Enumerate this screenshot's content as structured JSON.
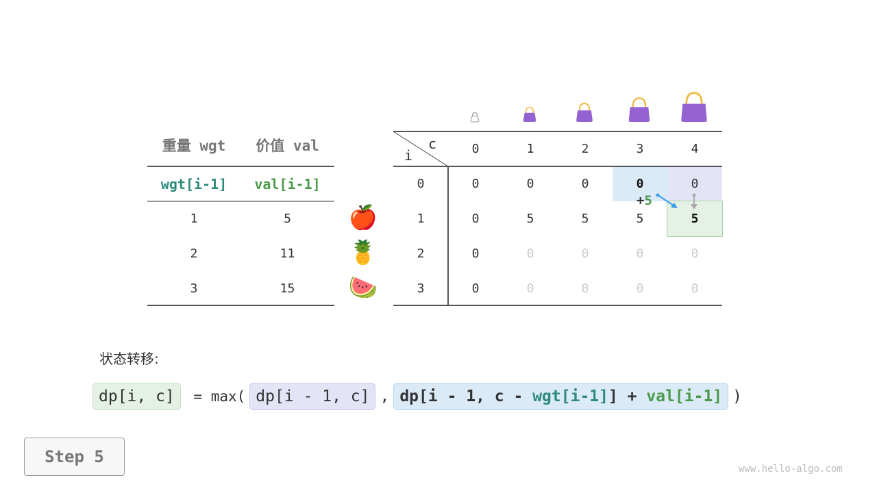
{
  "left_table": {
    "headers": [
      "重量 wgt",
      "价值 val"
    ],
    "subheaders": [
      "wgt[i-1]",
      "val[i-1]"
    ],
    "rows": [
      [
        "1",
        "5"
      ],
      [
        "2",
        "11"
      ],
      [
        "3",
        "15"
      ]
    ]
  },
  "items": [
    {
      "icon": "apple-icon",
      "glyph": "🍎"
    },
    {
      "icon": "pineapple-icon",
      "glyph": "🍍"
    },
    {
      "icon": "watermelon-icon",
      "glyph": "🍉"
    }
  ],
  "dp_table": {
    "row_label": "i",
    "col_label": "c",
    "columns": [
      "0",
      "1",
      "2",
      "3",
      "4"
    ],
    "row_indices": [
      "0",
      "1",
      "2",
      "3"
    ],
    "rows": [
      [
        "0",
        "0",
        "0",
        "0",
        "0"
      ],
      [
        "0",
        "5",
        "5",
        "5",
        "5"
      ],
      [
        "0",
        "0",
        "0",
        "0",
        "0"
      ],
      [
        "0",
        "0",
        "0",
        "0",
        "0"
      ]
    ]
  },
  "annotation": {
    "plus": "+",
    "value": "5"
  },
  "state_label": "状态转移:",
  "formula": {
    "lhs": "dp[i, c]",
    "eq": " = max(",
    "a": "dp[i - 1, c]",
    "comma": ",",
    "b1": "dp[i - 1, c - ",
    "b_wgt": "wgt[i-1]",
    "b2": "] + ",
    "b_val": "val[i-1]",
    "close": ")"
  },
  "step_button": "Step 5",
  "watermark": "www.hello-algo.com",
  "colors": {
    "teal": "#2e8b7d",
    "green": "#4a9a4a",
    "blue_cell": "#dbeaf7",
    "purple_cell": "#e3e5f7",
    "green_cell": "#e4f1e4",
    "bag": "#9462d1"
  }
}
